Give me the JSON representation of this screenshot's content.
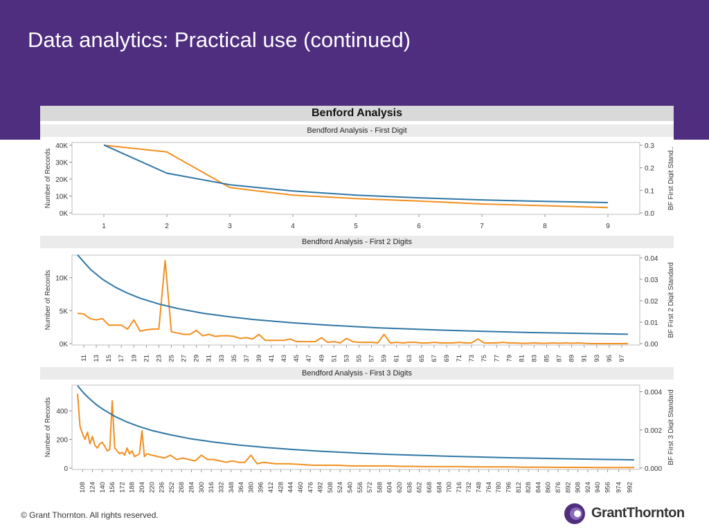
{
  "slide": {
    "title": "Data analytics: Practical use (continued)",
    "footer": "©  Grant Thornton. All rights reserved.",
    "logo_text": "GrantThornton"
  },
  "colors": {
    "header": "#4f2d7f",
    "actual": "#f28e1e",
    "benford": "#2e75a5"
  },
  "dashboard_title": "Benford Analysis",
  "chart_data": [
    {
      "type": "line",
      "title": "Bendford Analysis - First Digit",
      "ylabel": "Number of Records",
      "y2label": "BF First Digit Stand..",
      "yticks": [
        "40K",
        "30K",
        "20K",
        "10K",
        "0K"
      ],
      "y2ticks": [
        "0.3",
        "0.2",
        "0.1",
        "0.0"
      ],
      "ylim": [
        0,
        40000
      ],
      "y2lim": [
        0,
        0.3
      ],
      "xticks": [
        "1",
        "2",
        "3",
        "4",
        "5",
        "6",
        "7",
        "8",
        "9"
      ],
      "x": [
        1,
        2,
        3,
        4,
        5,
        6,
        7,
        8,
        9
      ],
      "series": [
        {
          "role": "actual",
          "axis": "left",
          "values": [
            40000,
            36000,
            15000,
            10500,
            8500,
            7000,
            5300,
            4300,
            3200
          ]
        },
        {
          "role": "benford",
          "axis": "right",
          "values": [
            0.301,
            0.176,
            0.125,
            0.097,
            0.079,
            0.067,
            0.058,
            0.051,
            0.046
          ]
        }
      ]
    },
    {
      "type": "line",
      "title": "Bendford Analysis - First 2 Digits",
      "ylabel": "Number of Records",
      "y2label": "BF First 2 Digit Standard",
      "yticks": [
        "10K",
        "5K",
        "0K"
      ],
      "y2ticks": [
        "0.04",
        "0.03",
        "0.02",
        "0.01",
        "0.00"
      ],
      "ylim": [
        0,
        13000
      ],
      "y2lim": [
        0,
        0.04
      ],
      "xticks": [
        "11",
        "13",
        "15",
        "17",
        "19",
        "21",
        "23",
        "25",
        "27",
        "29",
        "31",
        "33",
        "35",
        "37",
        "39",
        "41",
        "43",
        "45",
        "47",
        "49",
        "51",
        "53",
        "55",
        "57",
        "59",
        "61",
        "63",
        "65",
        "67",
        "69",
        "71",
        "73",
        "75",
        "77",
        "79",
        "81",
        "83",
        "85",
        "87",
        "89",
        "91",
        "93",
        "95",
        "97"
      ],
      "xmin": 10,
      "xmax": 99,
      "series": [
        {
          "role": "actual",
          "axis": "left",
          "x": [
            10,
            11,
            12,
            13,
            14,
            15,
            16,
            17,
            18,
            19,
            20,
            21,
            22,
            23,
            24,
            25,
            26,
            27,
            28,
            29,
            30,
            31,
            32,
            33,
            34,
            35,
            36,
            37,
            38,
            39,
            40,
            41,
            42,
            43,
            44,
            45,
            46,
            47,
            48,
            49,
            50,
            51,
            52,
            53,
            54,
            55,
            56,
            57,
            58,
            59,
            60,
            61,
            62,
            63,
            64,
            65,
            66,
            67,
            68,
            69,
            70,
            71,
            72,
            73,
            74,
            75,
            76,
            77,
            78,
            79,
            80,
            81,
            82,
            83,
            84,
            85,
            86,
            87,
            88,
            89,
            90,
            91,
            92,
            93,
            94,
            95,
            96,
            97,
            98
          ],
          "values": [
            4600,
            4500,
            3800,
            3600,
            3800,
            2800,
            2800,
            2800,
            2200,
            3600,
            1900,
            2100,
            2200,
            2200,
            12600,
            1800,
            1600,
            1400,
            1400,
            2000,
            1200,
            1400,
            1100,
            1200,
            1200,
            1100,
            800,
            900,
            700,
            1400,
            500,
            500,
            500,
            500,
            700,
            300,
            300,
            300,
            300,
            900,
            200,
            300,
            100,
            800,
            300,
            200,
            200,
            200,
            100,
            1400,
            100,
            200,
            100,
            200,
            200,
            100,
            100,
            200,
            100,
            100,
            100,
            200,
            100,
            100,
            700,
            100,
            100,
            100,
            200,
            100,
            100,
            50,
            50,
            100,
            50,
            50,
            100,
            50,
            100,
            50,
            100,
            50,
            0,
            0,
            0,
            0,
            0,
            0,
            0
          ]
        },
        {
          "role": "benford",
          "axis": "right",
          "x": [
            10,
            12,
            14,
            16,
            18,
            20,
            23,
            26,
            30,
            34,
            38,
            44,
            50,
            58,
            66,
            74,
            82,
            90,
            98
          ],
          "values": [
            0.0414,
            0.0348,
            0.03,
            0.0264,
            0.0235,
            0.0212,
            0.0185,
            0.0164,
            0.0142,
            0.0126,
            0.0113,
            0.0098,
            0.0086,
            0.0074,
            0.0065,
            0.0058,
            0.0052,
            0.0048,
            0.0044
          ]
        }
      ]
    },
    {
      "type": "line",
      "title": "Bendford Analysis - First 3 Digits",
      "ylabel": "Number of Records",
      "y2label": "BF First 3 Digit Standard",
      "yticks": [
        "400",
        "200",
        "0"
      ],
      "y2ticks": [
        "0.004",
        "0.002",
        "0.000"
      ],
      "ylim": [
        0,
        560
      ],
      "y2lim": [
        0,
        0.0042
      ],
      "xticks": [
        "108",
        "124",
        "140",
        "156",
        "172",
        "188",
        "204",
        "220",
        "236",
        "252",
        "268",
        "284",
        "300",
        "316",
        "332",
        "348",
        "364",
        "380",
        "396",
        "412",
        "428",
        "444",
        "460",
        "476",
        "492",
        "508",
        "524",
        "540",
        "556",
        "572",
        "588",
        "604",
        "620",
        "636",
        "652",
        "668",
        "684",
        "700",
        "716",
        "732",
        "748",
        "764",
        "780",
        "796",
        "812",
        "828",
        "844",
        "860",
        "876",
        "892",
        "908",
        "924",
        "940",
        "956",
        "974",
        "992"
      ],
      "xmin": 100,
      "xmax": 999,
      "series": [
        {
          "role": "actual",
          "axis": "left",
          "x": [
            100,
            104,
            108,
            112,
            116,
            120,
            124,
            128,
            132,
            136,
            140,
            144,
            148,
            152,
            156,
            160,
            164,
            168,
            172,
            176,
            180,
            184,
            188,
            192,
            196,
            200,
            204,
            208,
            212,
            220,
            230,
            240,
            250,
            260,
            270,
            280,
            290,
            300,
            310,
            320,
            330,
            340,
            350,
            360,
            370,
            380,
            390,
            400,
            420,
            440,
            460,
            480,
            500,
            520,
            540,
            560,
            580,
            600,
            620,
            640,
            660,
            680,
            700,
            720,
            740,
            760,
            780,
            800,
            820,
            840,
            860,
            880,
            900,
            920,
            940,
            960,
            980,
            999
          ],
          "values": [
            520,
            290,
            240,
            200,
            250,
            170,
            220,
            160,
            140,
            170,
            180,
            150,
            120,
            130,
            470,
            140,
            120,
            100,
            110,
            90,
            140,
            100,
            120,
            80,
            90,
            100,
            260,
            80,
            100,
            90,
            80,
            70,
            90,
            60,
            70,
            60,
            50,
            90,
            60,
            60,
            50,
            40,
            50,
            40,
            40,
            90,
            30,
            40,
            30,
            30,
            25,
            20,
            20,
            20,
            15,
            15,
            15,
            15,
            12,
            12,
            10,
            10,
            10,
            10,
            8,
            8,
            8,
            8,
            6,
            6,
            6,
            5,
            5,
            5,
            4,
            4,
            4,
            4
          ]
        },
        {
          "role": "benford",
          "axis": "right",
          "x": [
            100,
            110,
            120,
            130,
            140,
            160,
            180,
            200,
            220,
            250,
            280,
            320,
            360,
            400,
            450,
            500,
            550,
            600,
            650,
            700,
            800,
            900,
            999
          ],
          "values": [
            0.00432,
            0.00393,
            0.00361,
            0.00333,
            0.0031,
            0.00271,
            0.00241,
            0.00217,
            0.00197,
            0.00174,
            0.00155,
            0.00136,
            0.00121,
            0.00109,
            0.00097,
            0.00087,
            0.00079,
            0.00072,
            0.00067,
            0.00062,
            0.00054,
            0.00048,
            0.00043
          ]
        }
      ]
    }
  ]
}
